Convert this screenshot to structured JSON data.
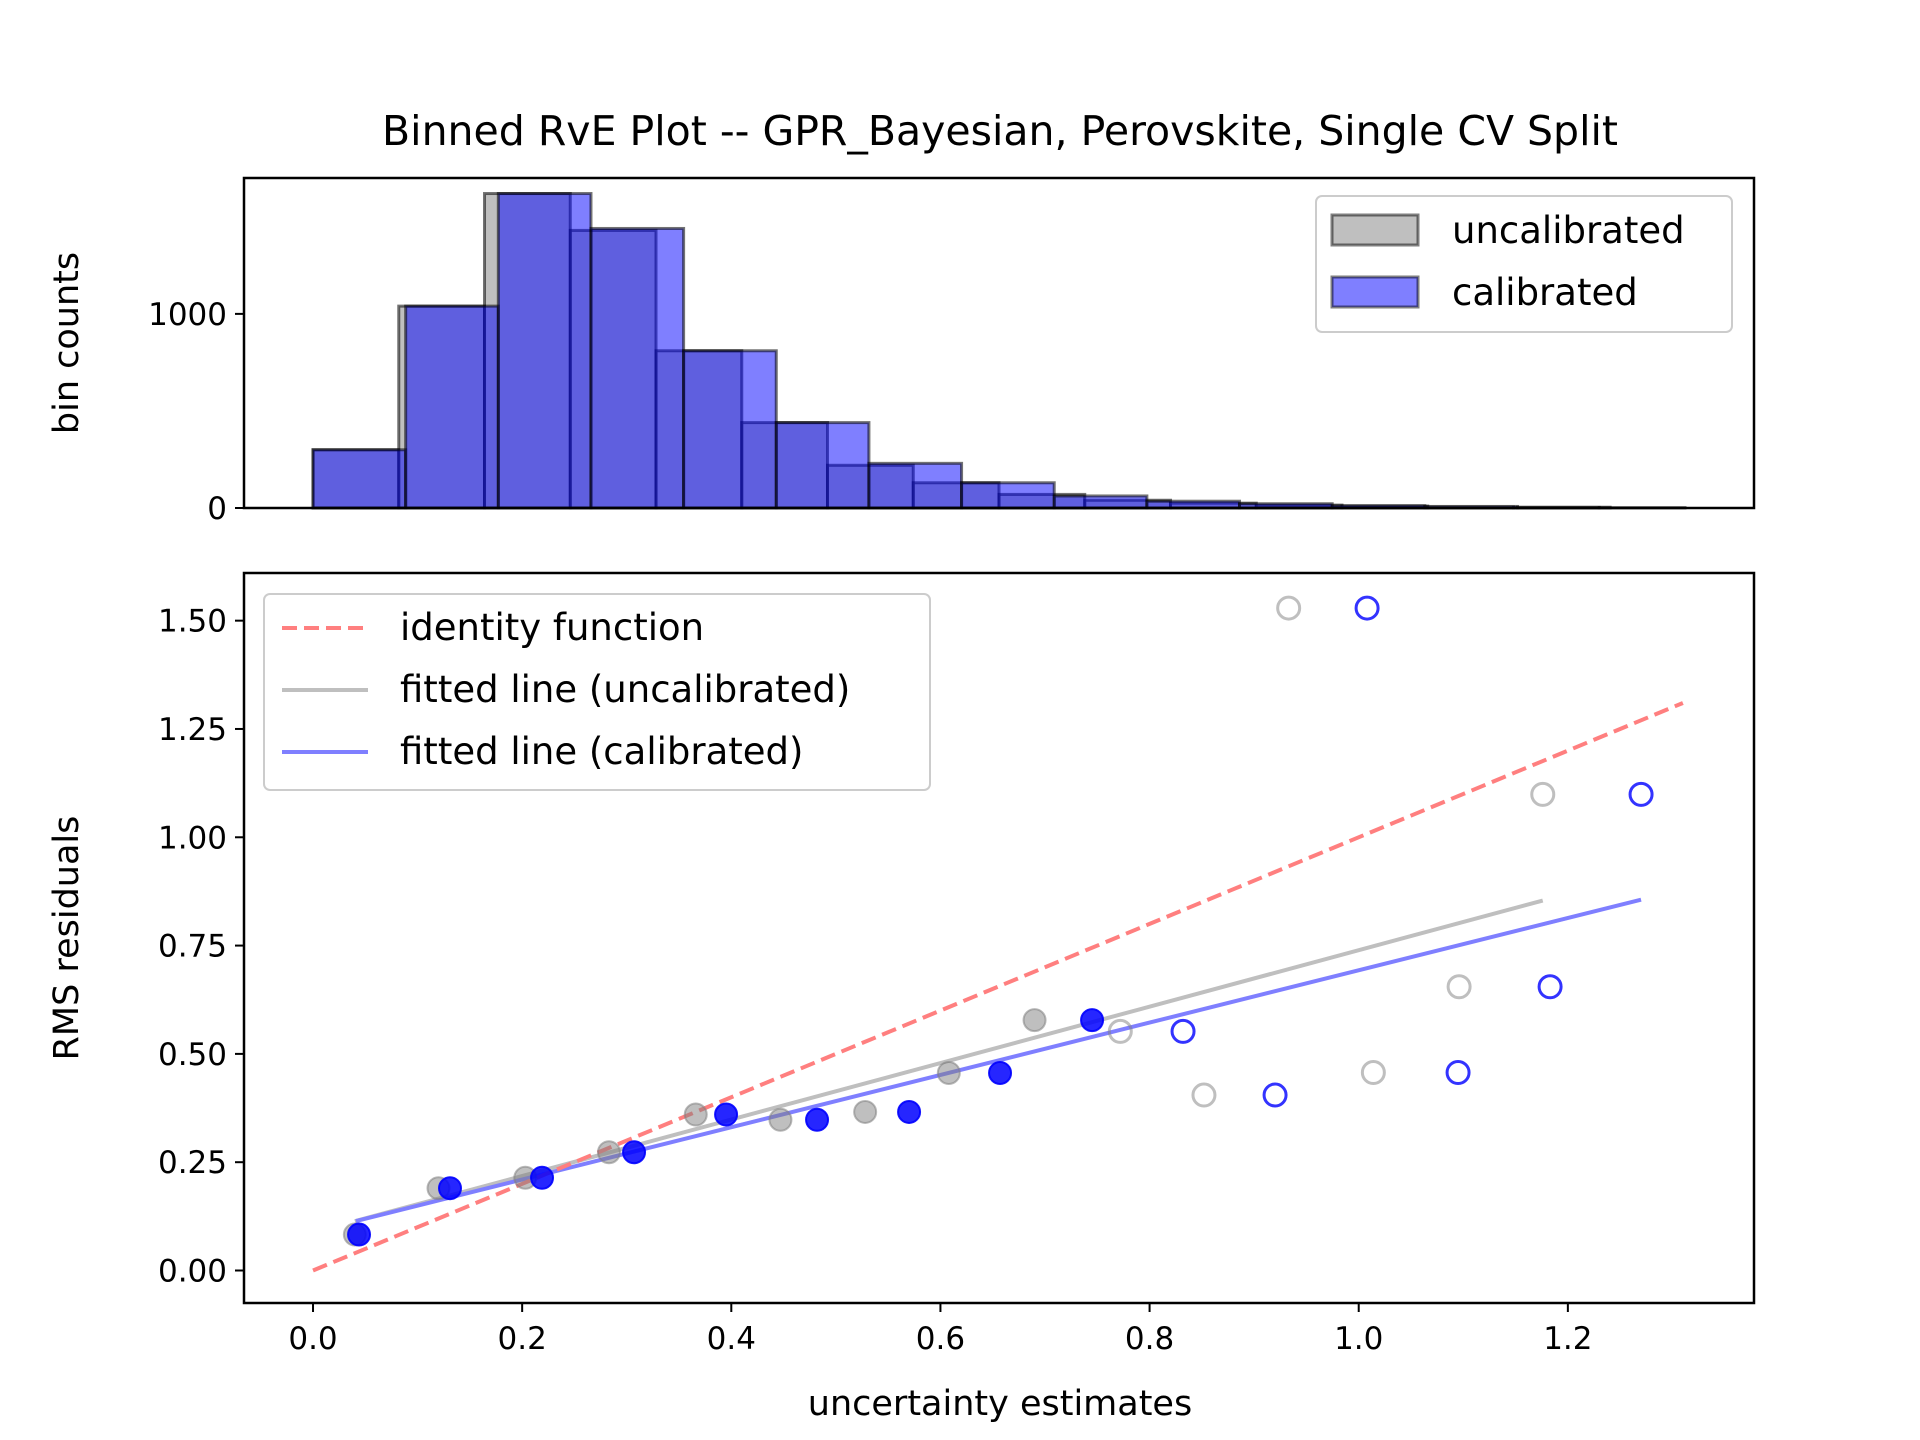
{
  "chart_data": [
    {
      "type": "bar",
      "subtype": "histogram",
      "title": "Binned RvE Plot -- GPR_Bayesian, Perovskite, Single CV Split",
      "ylabel": "bin counts",
      "xlim": [
        -0.066,
        1.378
      ],
      "ylim": [
        0,
        1700
      ],
      "y_ticks": [
        0,
        1000
      ],
      "legend": {
        "placement": "top-right",
        "entries": [
          "uncalibrated",
          "calibrated"
        ]
      },
      "series": [
        {
          "name": "uncalibrated",
          "color": "#808080",
          "bin_edges": [
            0.0,
            0.082,
            0.164,
            0.246,
            0.328,
            0.41,
            0.492,
            0.574,
            0.656,
            0.738,
            0.82,
            0.902,
            0.984,
            1.066,
            1.148,
            1.23,
            1.312
          ],
          "counts": [
            300,
            1040,
            1620,
            1430,
            810,
            440,
            220,
            130,
            70,
            40,
            25,
            15,
            10,
            5,
            3,
            2
          ]
        },
        {
          "name": "calibrated",
          "color": "#0000ff",
          "bin_edges": [
            0.0,
            0.0886,
            0.1772,
            0.2658,
            0.3544,
            0.443,
            0.5316,
            0.6202,
            0.7088,
            0.7974,
            0.886,
            0.9746,
            1.0632,
            1.1518,
            1.2404
          ],
          "counts": [
            300,
            1040,
            1620,
            1440,
            810,
            440,
            230,
            130,
            62,
            35,
            22,
            12,
            8,
            4
          ]
        }
      ]
    },
    {
      "type": "scatter",
      "xlabel": "uncertainty estimates",
      "ylabel": "RMS residuals",
      "xlim": [
        -0.066,
        1.378
      ],
      "ylim": [
        -0.075,
        1.61
      ],
      "x_ticks": [
        "0.0",
        "0.2",
        "0.4",
        "0.6",
        "0.8",
        "1.0",
        "1.2"
      ],
      "y_ticks": [
        "0.00",
        "0.25",
        "0.50",
        "0.75",
        "1.00",
        "1.25",
        "1.50"
      ],
      "legend": {
        "placement": "top-left",
        "entries": [
          "identity function",
          "fitted line (uncalibrated)",
          "fitted line (calibrated)"
        ]
      },
      "identity_line": {
        "name": "identity function",
        "color": "#ff7f7f",
        "x": [
          0.0,
          1.31
        ],
        "y": [
          0.0,
          1.31
        ]
      },
      "fitted_lines": [
        {
          "name": "fitted line (uncalibrated)",
          "color": "#bfbfbf",
          "x": [
            0.04,
            1.176
          ],
          "y": [
            0.114,
            0.854
          ]
        },
        {
          "name": "fitted line (calibrated)",
          "color": "#7f7fff",
          "x": [
            0.041,
            1.27
          ],
          "y": [
            0.114,
            0.856
          ]
        }
      ],
      "series": [
        {
          "name": "uncalibrated",
          "color": "#808080",
          "filled": {
            "x": [
              0.04,
              0.12,
              0.203,
              0.283,
              0.366,
              0.447,
              0.528,
              0.608,
              0.69
            ],
            "y": [
              0.083,
              0.19,
              0.214,
              0.273,
              0.36,
              0.348,
              0.366,
              0.456,
              0.578
            ]
          },
          "hollow": {
            "x": [
              0.772,
              0.852,
              0.933,
              1.014,
              1.096,
              1.176
            ],
            "y": [
              0.552,
              0.405,
              1.529,
              0.457,
              0.655,
              1.099
            ]
          }
        },
        {
          "name": "calibrated",
          "color": "#0000ff",
          "filled": {
            "x": [
              0.044,
              0.131,
              0.219,
              0.307,
              0.395,
              0.482,
              0.57,
              0.657,
              0.745
            ],
            "y": [
              0.083,
              0.19,
              0.214,
              0.273,
              0.36,
              0.348,
              0.366,
              0.456,
              0.578
            ]
          },
          "hollow": {
            "x": [
              0.832,
              0.92,
              1.008,
              1.095,
              1.183,
              1.27
            ],
            "y": [
              0.552,
              0.405,
              1.529,
              0.457,
              0.655,
              1.099
            ]
          }
        }
      ]
    }
  ]
}
